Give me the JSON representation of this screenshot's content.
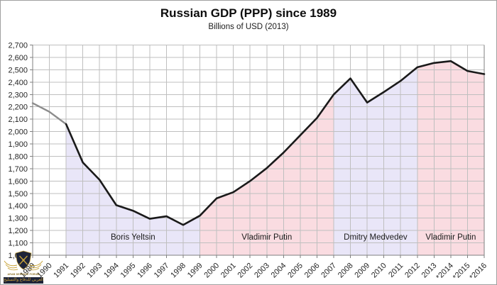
{
  "header": {
    "title": "Russian GDP (PPP) since 1989",
    "subtitle": "Billions of USD (2013)"
  },
  "watermark": {
    "icon": "arab-defense-forum-crest",
    "name_en": "ARAB DEFENSE FORUM",
    "name_ar": "المنتدى العربي للدفاع والتسليح"
  },
  "chart_data": {
    "type": "area",
    "title": "Russian GDP (PPP) since 1989",
    "subtitle": "Billions of USD (2013)",
    "xlabel": "",
    "ylabel": "",
    "x": [
      1989,
      1990,
      1991,
      1992,
      1993,
      1994,
      1995,
      1996,
      1997,
      1998,
      1999,
      2000,
      2001,
      2002,
      2003,
      2004,
      2005,
      2006,
      2007,
      2008,
      2009,
      2010,
      2011,
      2012,
      2013,
      2014,
      2015,
      2016
    ],
    "x_labels": [
      "1989",
      "1990",
      "1991",
      "1992",
      "1993",
      "1994",
      "1995",
      "1996",
      "1997",
      "1998",
      "1999",
      "2000",
      "2001",
      "2002",
      "2003",
      "2004",
      "2005",
      "2006",
      "2007",
      "2008",
      "2009",
      "2010",
      "2011",
      "2012",
      "2013",
      "*2014",
      "*2015",
      "*2016"
    ],
    "values": [
      2230,
      2160,
      2060,
      1750,
      1610,
      1405,
      1360,
      1295,
      1315,
      1245,
      1320,
      1460,
      1510,
      1600,
      1705,
      1830,
      1970,
      2110,
      2300,
      2430,
      2235,
      2320,
      2410,
      2520,
      2555,
      2570,
      2490,
      2465
    ],
    "ylim": [
      1000,
      2700
    ],
    "y_tick_step": 100,
    "grid": true,
    "legend": "none",
    "line": {
      "color": "#1a1a1a",
      "pre_era_color": "#8c8c8c",
      "solid_from": 1991
    },
    "eras": [
      {
        "label": "Boris Yeltsin",
        "from": 1991,
        "to": 1999,
        "fill": "#e9e6f8"
      },
      {
        "label": "Vladimir Putin",
        "from": 1999,
        "to": 2007,
        "fill": "#fadce1"
      },
      {
        "label": "Dmitry Medvedev",
        "from": 2007,
        "to": 2012,
        "fill": "#e9e6f8"
      },
      {
        "label": "Vladimir Putin",
        "from": 2012,
        "to": 2016,
        "fill": "#fadce1"
      }
    ],
    "colors": {
      "grid": "#bfbfbf",
      "axis": "#7f7f7f",
      "tick_text": "#262626",
      "era_label_text": "#1a1a1a"
    }
  }
}
